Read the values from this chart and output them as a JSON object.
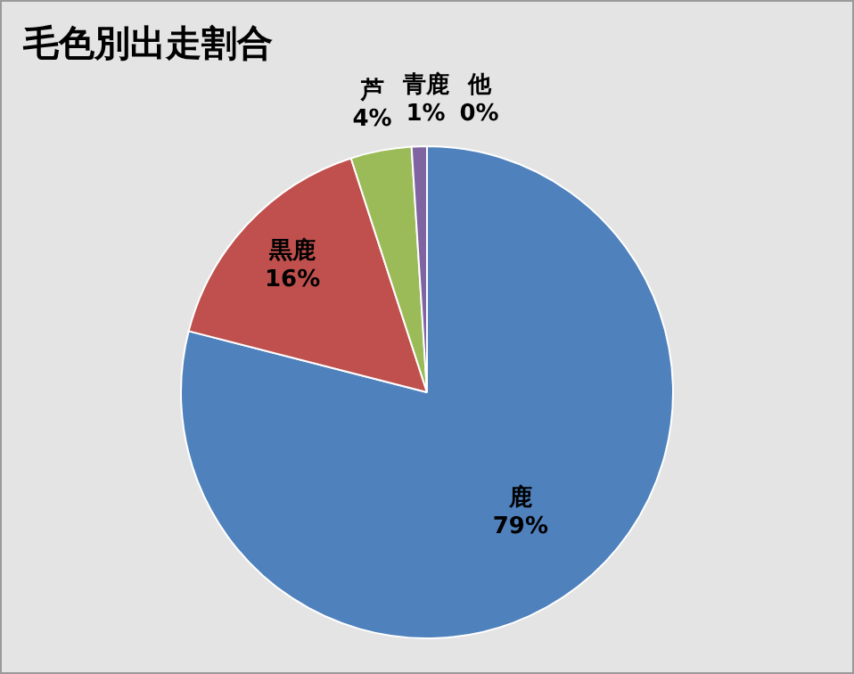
{
  "chart_data": {
    "type": "pie",
    "title": "毛色別出走割合",
    "categories": [
      "鹿",
      "黒鹿",
      "芦",
      "青鹿",
      "他"
    ],
    "values": [
      79,
      16,
      4,
      1,
      0
    ],
    "value_labels": [
      "79%",
      "16%",
      "4%",
      "1%",
      "0%"
    ],
    "colors": [
      "#4f81bd",
      "#c0504d",
      "#9bbb59",
      "#8064a2",
      "#4bacc6"
    ],
    "legend": false
  }
}
